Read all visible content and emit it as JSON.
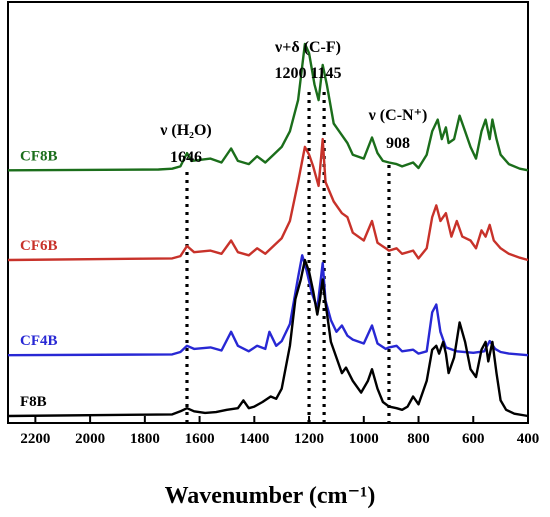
{
  "chart_data": {
    "type": "line",
    "xlabel": "Wavenumber (cm⁻¹)",
    "xlim": [
      2300,
      400
    ],
    "x_reversed": true,
    "x_ticks": [
      "2200",
      "2000",
      "1800",
      "1600",
      "1400",
      "1200",
      "1000",
      "800",
      "600",
      "400"
    ],
    "x_tick_values": [
      2200,
      2000,
      1800,
      1600,
      1400,
      1200,
      1000,
      800,
      600,
      400
    ],
    "y_axis_visible": false,
    "grid": false,
    "series": [
      {
        "name": "CF8B",
        "color": "#1b6e1b",
        "baseline": 3.15,
        "points": [
          [
            2300,
            0.0
          ],
          [
            1750,
            0.01
          ],
          [
            1700,
            0.02
          ],
          [
            1670,
            0.05
          ],
          [
            1646,
            0.22
          ],
          [
            1630,
            0.12
          ],
          [
            1560,
            0.15
          ],
          [
            1520,
            0.1
          ],
          [
            1485,
            0.28
          ],
          [
            1460,
            0.12
          ],
          [
            1420,
            0.08
          ],
          [
            1390,
            0.18
          ],
          [
            1360,
            0.1
          ],
          [
            1330,
            0.2
          ],
          [
            1300,
            0.3
          ],
          [
            1270,
            0.5
          ],
          [
            1240,
            0.9
          ],
          [
            1215,
            1.62
          ],
          [
            1200,
            1.5
          ],
          [
            1180,
            1.1
          ],
          [
            1165,
            0.9
          ],
          [
            1150,
            1.35
          ],
          [
            1135,
            1.1
          ],
          [
            1110,
            0.6
          ],
          [
            1080,
            0.45
          ],
          [
            1060,
            0.35
          ],
          [
            1040,
            0.2
          ],
          [
            1000,
            0.15
          ],
          [
            970,
            0.42
          ],
          [
            950,
            0.22
          ],
          [
            930,
            0.12
          ],
          [
            908,
            0.1
          ],
          [
            880,
            0.08
          ],
          [
            860,
            0.05
          ],
          [
            820,
            0.1
          ],
          [
            800,
            0.03
          ],
          [
            770,
            0.2
          ],
          [
            750,
            0.5
          ],
          [
            730,
            0.65
          ],
          [
            715,
            0.4
          ],
          [
            700,
            0.55
          ],
          [
            690,
            0.35
          ],
          [
            670,
            0.4
          ],
          [
            650,
            0.7
          ],
          [
            630,
            0.5
          ],
          [
            610,
            0.3
          ],
          [
            590,
            0.15
          ],
          [
            570,
            0.5
          ],
          [
            555,
            0.65
          ],
          [
            540,
            0.4
          ],
          [
            530,
            0.65
          ],
          [
            515,
            0.4
          ],
          [
            500,
            0.2
          ],
          [
            470,
            0.08
          ],
          [
            430,
            0.02
          ],
          [
            400,
            0.0
          ]
        ]
      },
      {
        "name": "CF6B",
        "color": "#c8322a",
        "baseline": 2.0,
        "points": [
          [
            2300,
            0.0
          ],
          [
            1700,
            0.02
          ],
          [
            1670,
            0.05
          ],
          [
            1646,
            0.18
          ],
          [
            1620,
            0.1
          ],
          [
            1560,
            0.12
          ],
          [
            1520,
            0.08
          ],
          [
            1485,
            0.25
          ],
          [
            1460,
            0.1
          ],
          [
            1420,
            0.06
          ],
          [
            1390,
            0.15
          ],
          [
            1360,
            0.08
          ],
          [
            1330,
            0.18
          ],
          [
            1300,
            0.28
          ],
          [
            1270,
            0.5
          ],
          [
            1240,
            1.0
          ],
          [
            1215,
            1.45
          ],
          [
            1200,
            1.35
          ],
          [
            1185,
            1.2
          ],
          [
            1165,
            0.95
          ],
          [
            1150,
            1.55
          ],
          [
            1140,
            1.0
          ],
          [
            1110,
            0.75
          ],
          [
            1080,
            0.6
          ],
          [
            1060,
            0.55
          ],
          [
            1040,
            0.35
          ],
          [
            1000,
            0.25
          ],
          [
            970,
            0.5
          ],
          [
            950,
            0.22
          ],
          [
            920,
            0.15
          ],
          [
            908,
            0.12
          ],
          [
            880,
            0.15
          ],
          [
            860,
            0.08
          ],
          [
            820,
            0.12
          ],
          [
            800,
            0.02
          ],
          [
            770,
            0.15
          ],
          [
            750,
            0.55
          ],
          [
            735,
            0.7
          ],
          [
            720,
            0.5
          ],
          [
            700,
            0.6
          ],
          [
            680,
            0.3
          ],
          [
            660,
            0.5
          ],
          [
            640,
            0.3
          ],
          [
            610,
            0.25
          ],
          [
            590,
            0.15
          ],
          [
            570,
            0.38
          ],
          [
            555,
            0.3
          ],
          [
            540,
            0.45
          ],
          [
            525,
            0.25
          ],
          [
            500,
            0.15
          ],
          [
            470,
            0.08
          ],
          [
            430,
            0.03
          ],
          [
            400,
            0.0
          ]
        ]
      },
      {
        "name": "CF4B",
        "color": "#2828d4",
        "baseline": 0.78,
        "points": [
          [
            2300,
            0.0
          ],
          [
            1700,
            0.01
          ],
          [
            1670,
            0.04
          ],
          [
            1646,
            0.12
          ],
          [
            1620,
            0.08
          ],
          [
            1560,
            0.1
          ],
          [
            1520,
            0.06
          ],
          [
            1485,
            0.3
          ],
          [
            1460,
            0.12
          ],
          [
            1420,
            0.05
          ],
          [
            1390,
            0.12
          ],
          [
            1360,
            0.08
          ],
          [
            1345,
            0.3
          ],
          [
            1320,
            0.12
          ],
          [
            1300,
            0.18
          ],
          [
            1270,
            0.4
          ],
          [
            1240,
            1.0
          ],
          [
            1225,
            1.28
          ],
          [
            1210,
            1.1
          ],
          [
            1190,
            0.8
          ],
          [
            1170,
            0.6
          ],
          [
            1150,
            1.18
          ],
          [
            1140,
            0.7
          ],
          [
            1120,
            0.45
          ],
          [
            1100,
            0.3
          ],
          [
            1080,
            0.38
          ],
          [
            1060,
            0.25
          ],
          [
            1040,
            0.2
          ],
          [
            1000,
            0.15
          ],
          [
            970,
            0.38
          ],
          [
            950,
            0.15
          ],
          [
            920,
            0.08
          ],
          [
            908,
            0.1
          ],
          [
            880,
            0.12
          ],
          [
            860,
            0.05
          ],
          [
            820,
            0.07
          ],
          [
            800,
            0.02
          ],
          [
            770,
            0.05
          ],
          [
            750,
            0.55
          ],
          [
            735,
            0.65
          ],
          [
            720,
            0.3
          ],
          [
            700,
            0.1
          ],
          [
            660,
            0.05
          ],
          [
            600,
            0.03
          ],
          [
            560,
            0.05
          ],
          [
            540,
            0.18
          ],
          [
            520,
            0.08
          ],
          [
            500,
            0.04
          ],
          [
            470,
            0.02
          ],
          [
            400,
            0.0
          ]
        ]
      },
      {
        "name": "F8B",
        "color": "#000000",
        "baseline": 0.0,
        "points": [
          [
            2300,
            0.0
          ],
          [
            1700,
            0.02
          ],
          [
            1670,
            0.06
          ],
          [
            1646,
            0.1
          ],
          [
            1620,
            0.06
          ],
          [
            1580,
            0.04
          ],
          [
            1540,
            0.05
          ],
          [
            1500,
            0.08
          ],
          [
            1460,
            0.1
          ],
          [
            1440,
            0.2
          ],
          [
            1420,
            0.1
          ],
          [
            1400,
            0.12
          ],
          [
            1370,
            0.18
          ],
          [
            1340,
            0.25
          ],
          [
            1320,
            0.22
          ],
          [
            1300,
            0.35
          ],
          [
            1270,
            0.9
          ],
          [
            1250,
            1.5
          ],
          [
            1230,
            1.75
          ],
          [
            1215,
            2.0
          ],
          [
            1200,
            1.85
          ],
          [
            1185,
            1.6
          ],
          [
            1170,
            1.3
          ],
          [
            1160,
            1.5
          ],
          [
            1150,
            1.75
          ],
          [
            1140,
            1.45
          ],
          [
            1120,
            0.95
          ],
          [
            1100,
            0.75
          ],
          [
            1080,
            0.55
          ],
          [
            1065,
            0.62
          ],
          [
            1040,
            0.45
          ],
          [
            1010,
            0.3
          ],
          [
            985,
            0.45
          ],
          [
            970,
            0.6
          ],
          [
            950,
            0.35
          ],
          [
            930,
            0.18
          ],
          [
            908,
            0.12
          ],
          [
            880,
            0.1
          ],
          [
            860,
            0.08
          ],
          [
            840,
            0.12
          ],
          [
            820,
            0.25
          ],
          [
            800,
            0.15
          ],
          [
            770,
            0.45
          ],
          [
            750,
            0.85
          ],
          [
            735,
            0.9
          ],
          [
            725,
            0.8
          ],
          [
            710,
            0.95
          ],
          [
            700,
            0.8
          ],
          [
            690,
            0.55
          ],
          [
            670,
            0.75
          ],
          [
            650,
            1.2
          ],
          [
            630,
            0.95
          ],
          [
            610,
            0.6
          ],
          [
            590,
            0.5
          ],
          [
            570,
            0.85
          ],
          [
            555,
            0.95
          ],
          [
            545,
            0.7
          ],
          [
            530,
            0.95
          ],
          [
            515,
            0.55
          ],
          [
            500,
            0.2
          ],
          [
            480,
            0.08
          ],
          [
            450,
            0.03
          ],
          [
            400,
            0.0
          ]
        ]
      }
    ],
    "markers": [
      {
        "wavenumber": 1646,
        "label_top": "ν (H₂O)",
        "label_bottom": "1646",
        "style": "dotted"
      },
      {
        "wavenumber": 1200,
        "style": "dotted"
      },
      {
        "wavenumber": 1145,
        "style": "dotted"
      },
      {
        "wavenumber": 908,
        "label_top": "ν (C-N⁺)",
        "label_bottom": "908",
        "style": "dotted"
      }
    ],
    "group_annotation": {
      "label_top": "ν+δ (C-F)",
      "label_bottom": "1200 1145"
    }
  }
}
